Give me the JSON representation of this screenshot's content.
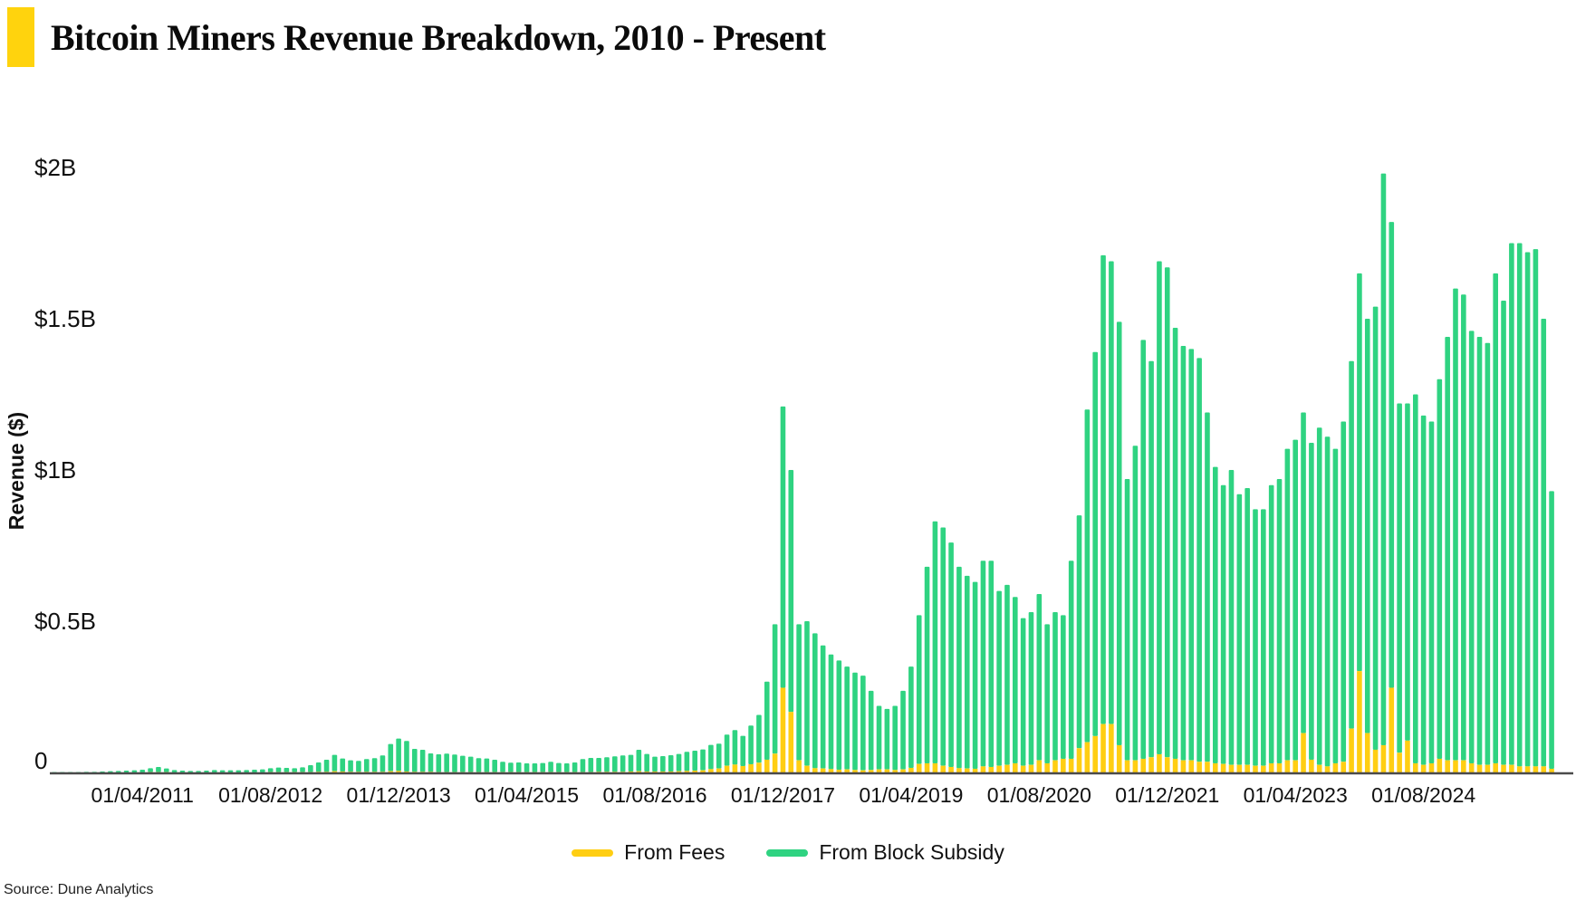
{
  "title": {
    "text": "Bitcoin Miners Revenue Breakdown, 2010 - Present",
    "accent_color": "#FFD30D"
  },
  "source": "Source: Dune Analytics",
  "legend": {
    "items": [
      {
        "label": "From Fees",
        "color": "#FFCE13"
      },
      {
        "label": "From Block Subsidy",
        "color": "#2FD381"
      }
    ]
  },
  "y_axis": {
    "label": "Revenue ($)",
    "ticks": [
      {
        "label": "0",
        "value": 0
      },
      {
        "label": "$0.5B",
        "value": 0.5
      },
      {
        "label": "$1B",
        "value": 1
      },
      {
        "label": "$1.5B",
        "value": 1.5
      },
      {
        "label": "$2B",
        "value": 2
      }
    ]
  },
  "x_axis": {
    "tick_labels": [
      "01/04/2011",
      "01/08/2012",
      "01/12/2013",
      "01/04/2015",
      "01/08/2016",
      "01/12/2017",
      "01/04/2019",
      "01/08/2020",
      "01/12/2021",
      "01/04/2023",
      "01/08/2024"
    ],
    "tick_month_indices": [
      11,
      27,
      43,
      59,
      75,
      91,
      107,
      123,
      139,
      155,
      171
    ]
  },
  "chart_data": {
    "type": "bar",
    "stacked": true,
    "title": "Bitcoin Miners Revenue Breakdown, 2010 - Present",
    "xlabel": "",
    "ylabel": "Revenue ($)",
    "unit": "billions USD per month",
    "ylim": [
      0,
      2
    ],
    "grid": false,
    "legend_position": "bottom",
    "start_month": "2010-05",
    "months_count": 188,
    "series": [
      {
        "name": "From Fees",
        "color": "#FFCE13",
        "values": [
          0,
          0,
          0,
          0,
          0,
          0,
          0,
          0,
          0,
          0,
          0,
          0,
          0.001,
          0.001,
          0.001,
          0,
          0,
          0,
          0,
          0,
          0,
          0,
          0,
          0,
          0,
          0,
          0,
          0.001,
          0.001,
          0.001,
          0.001,
          0.001,
          0.001,
          0.002,
          0.002,
          0.004,
          0.003,
          0.002,
          0.002,
          0.002,
          0.002,
          0.002,
          0.004,
          0.005,
          0.003,
          0.002,
          0.002,
          0.002,
          0.001,
          0.001,
          0.001,
          0.001,
          0.001,
          0.001,
          0.001,
          0.001,
          0.001,
          0.001,
          0.001,
          0.001,
          0.001,
          0.001,
          0.001,
          0.001,
          0.001,
          0.001,
          0.001,
          0.001,
          0.002,
          0.002,
          0.002,
          0.002,
          0.003,
          0.004,
          0.003,
          0.003,
          0.003,
          0.003,
          0.004,
          0.005,
          0.006,
          0.007,
          0.011,
          0.013,
          0.022,
          0.026,
          0.021,
          0.027,
          0.032,
          0.042,
          0.062,
          0.28,
          0.2,
          0.04,
          0.022,
          0.014,
          0.013,
          0.011,
          0.009,
          0.01,
          0.008,
          0.007,
          0.008,
          0.01,
          0.01,
          0.008,
          0.01,
          0.015,
          0.028,
          0.03,
          0.03,
          0.022,
          0.018,
          0.014,
          0.013,
          0.012,
          0.02,
          0.018,
          0.022,
          0.025,
          0.03,
          0.022,
          0.025,
          0.04,
          0.03,
          0.04,
          0.045,
          0.045,
          0.08,
          0.1,
          0.12,
          0.16,
          0.16,
          0.09,
          0.04,
          0.04,
          0.045,
          0.05,
          0.06,
          0.05,
          0.045,
          0.04,
          0.04,
          0.035,
          0.035,
          0.03,
          0.028,
          0.025,
          0.025,
          0.025,
          0.022,
          0.022,
          0.03,
          0.03,
          0.04,
          0.04,
          0.13,
          0.042,
          0.025,
          0.02,
          0.03,
          0.035,
          0.145,
          0.335,
          0.13,
          0.075,
          0.09,
          0.28,
          0.065,
          0.105,
          0.03,
          0.025,
          0.03,
          0.045,
          0.04,
          0.04,
          0.04,
          0.03,
          0.025,
          0.025,
          0.03,
          0.025,
          0.025,
          0.02,
          0.02,
          0.02,
          0.02,
          0.012
        ]
      },
      {
        "name": "From Block Subsidy",
        "color": "#2FD381",
        "values": [
          0.001,
          0.001,
          0.001,
          0.001,
          0.002,
          0.002,
          0.003,
          0.004,
          0.005,
          0.006,
          0.007,
          0.009,
          0.013,
          0.017,
          0.012,
          0.008,
          0.006,
          0.005,
          0.005,
          0.006,
          0.008,
          0.007,
          0.007,
          0.007,
          0.008,
          0.009,
          0.01,
          0.013,
          0.015,
          0.014,
          0.013,
          0.016,
          0.023,
          0.031,
          0.04,
          0.054,
          0.043,
          0.038,
          0.036,
          0.042,
          0.045,
          0.054,
          0.09,
          0.107,
          0.101,
          0.076,
          0.073,
          0.061,
          0.059,
          0.061,
          0.058,
          0.054,
          0.051,
          0.046,
          0.045,
          0.041,
          0.034,
          0.031,
          0.032,
          0.029,
          0.029,
          0.03,
          0.034,
          0.03,
          0.029,
          0.032,
          0.043,
          0.047,
          0.046,
          0.048,
          0.051,
          0.054,
          0.055,
          0.071,
          0.058,
          0.049,
          0.051,
          0.054,
          0.057,
          0.063,
          0.066,
          0.069,
          0.08,
          0.082,
          0.103,
          0.114,
          0.1,
          0.128,
          0.158,
          0.258,
          0.428,
          0.93,
          0.8,
          0.45,
          0.478,
          0.446,
          0.407,
          0.379,
          0.361,
          0.34,
          0.322,
          0.313,
          0.262,
          0.21,
          0.2,
          0.212,
          0.26,
          0.335,
          0.492,
          0.65,
          0.8,
          0.788,
          0.742,
          0.666,
          0.637,
          0.618,
          0.68,
          0.682,
          0.578,
          0.595,
          0.55,
          0.488,
          0.505,
          0.55,
          0.46,
          0.49,
          0.475,
          0.655,
          0.77,
          1.1,
          1.27,
          1.55,
          1.53,
          1.4,
          0.93,
          1.04,
          1.385,
          1.31,
          1.63,
          1.62,
          1.425,
          1.37,
          1.36,
          1.335,
          1.155,
          0.98,
          0.922,
          0.975,
          0.895,
          0.915,
          0.848,
          0.848,
          0.92,
          0.94,
          1.03,
          1.06,
          1.06,
          1.048,
          1.115,
          1.09,
          1.04,
          1.125,
          1.215,
          1.315,
          1.37,
          1.465,
          1.89,
          1.54,
          1.155,
          1.115,
          1.22,
          1.155,
          1.13,
          1.255,
          1.4,
          1.56,
          1.54,
          1.43,
          1.415,
          1.395,
          1.62,
          1.535,
          1.725,
          1.73,
          1.7,
          1.71,
          1.48,
          0.918
        ]
      }
    ]
  }
}
